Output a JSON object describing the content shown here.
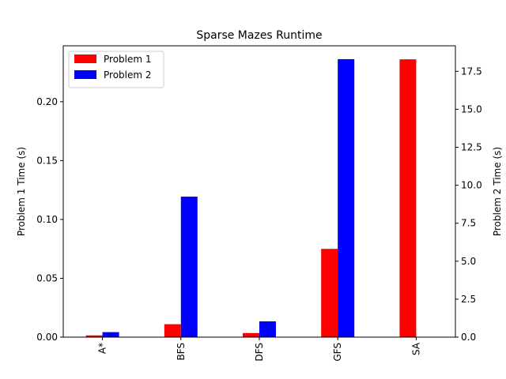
{
  "chart_data": {
    "type": "bar",
    "title": "Sparse Mazes Runtime",
    "categories": [
      "A*",
      "BFS",
      "DFS",
      "GFS",
      "SA"
    ],
    "left_axis": {
      "label": "Problem 1 Time (s)",
      "ylim": [
        0,
        0.2475
      ],
      "ticks": [
        0.0,
        0.05,
        0.1,
        0.15,
        0.2
      ],
      "tick_labels": [
        "0.00",
        "0.05",
        "0.10",
        "0.15",
        "0.20"
      ]
    },
    "right_axis": {
      "label": "Problem 2 Time (s)",
      "ylim": [
        0,
        19.18
      ],
      "ticks": [
        0,
        2.5,
        5,
        7.5,
        10,
        12.5,
        15,
        17.5
      ],
      "tick_labels": [
        "0.0",
        "2.5",
        "5.0",
        "7.5",
        "10.0",
        "12.5",
        "15.0",
        "17.5"
      ]
    },
    "series": [
      {
        "name": "Problem 1",
        "axis": "left",
        "color": "#ff0000",
        "values": [
          0.0015,
          0.011,
          0.0035,
          0.075,
          0.236
        ]
      },
      {
        "name": "Problem 2",
        "axis": "right",
        "color": "#0000ff",
        "values": [
          0.33,
          9.25,
          1.04,
          18.3,
          0
        ]
      }
    ],
    "legend_position": "upper-left",
    "grid": false
  }
}
